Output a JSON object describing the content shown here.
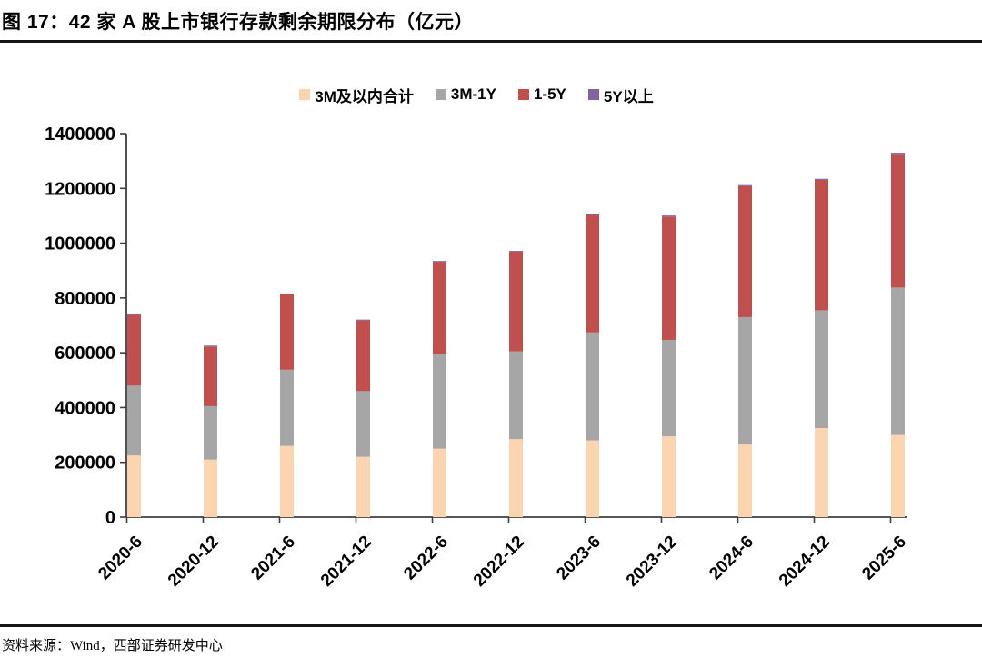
{
  "page": {
    "title": "图 17：42 家 A 股上市银行存款剩余期限分布（亿元）",
    "source_note": "资料来源：Wind，西部证券研发中心"
  },
  "colors": {
    "divider": "#161616",
    "axis": "#3f3f3f",
    "label_text": "#000000"
  },
  "chart_data": {
    "type": "bar",
    "stacked": true,
    "title": "42 家 A 股上市银行存款剩余期限分布（亿元）",
    "unit": "亿元",
    "categories": [
      "2020-6",
      "2020-12",
      "2021-6",
      "2021-12",
      "2022-6",
      "2022-12",
      "2023-6",
      "2023-12",
      "2024-6",
      "2024-12",
      "2025-6"
    ],
    "series": [
      {
        "name": "3M及以内合计",
        "color": "#FBD4B0",
        "values": [
          225000,
          210000,
          260000,
          220000,
          250000,
          285000,
          280000,
          295000,
          265000,
          325000,
          300000
        ]
      },
      {
        "name": "3M-1Y",
        "color": "#A6A6A6",
        "values": [
          255000,
          195000,
          278000,
          240000,
          345000,
          320000,
          394000,
          352000,
          465000,
          430000,
          538000
        ]
      },
      {
        "name": "1-5Y",
        "color": "#C0504D",
        "values": [
          258000,
          218000,
          275000,
          258000,
          337000,
          364000,
          429000,
          450000,
          478000,
          476000,
          488000
        ]
      },
      {
        "name": "5Y以上",
        "color": "#8064A2",
        "values": [
          3000,
          3000,
          3000,
          3000,
          3000,
          3000,
          4000,
          4000,
          4000,
          4000,
          4000
        ]
      }
    ],
    "totals": [
      741000,
      626000,
      816000,
      721000,
      935000,
      972000,
      1107000,
      1101000,
      1212000,
      1235000,
      1330000
    ],
    "ylim": [
      0,
      1400000
    ],
    "ytick_step": 200000,
    "ytick_labels": [
      "0",
      "200000",
      "400000",
      "600000",
      "800000",
      "1000000",
      "1200000",
      "1400000"
    ],
    "xtick_rotation": -45,
    "legend_position": "top",
    "grid": false
  }
}
